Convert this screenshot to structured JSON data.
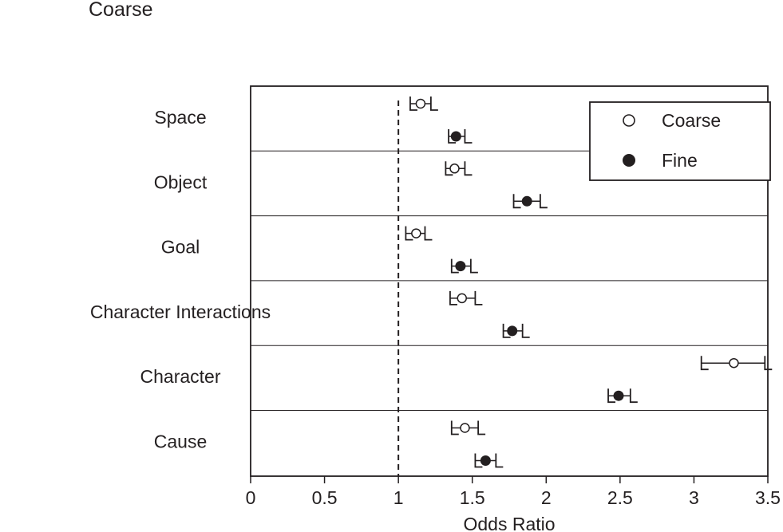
{
  "chart_data": {
    "type": "scatter",
    "title": "Coarse",
    "xlabel": "Odds Ratio",
    "ylabel": "",
    "xlim": [
      0,
      3.5
    ],
    "xticks": [
      "0",
      "0.5",
      "1",
      "1.5",
      "2",
      "2.5",
      "3",
      "3.5"
    ],
    "reference_line": 1,
    "grid": false,
    "legend_position": "top-right",
    "categories": [
      "Space",
      "Object",
      "Goal",
      "Character Interactions",
      "Character",
      "Cause"
    ],
    "series": [
      {
        "name": "Coarse",
        "marker": "open-circle",
        "values": [
          1.15,
          1.38,
          1.12,
          1.43,
          3.27,
          1.45
        ],
        "ci_low": [
          1.08,
          1.32,
          1.05,
          1.35,
          3.05,
          1.36
        ],
        "ci_high": [
          1.22,
          1.45,
          1.18,
          1.52,
          3.48,
          1.54
        ]
      },
      {
        "name": "Fine",
        "marker": "filled-circle",
        "values": [
          1.39,
          1.87,
          1.42,
          1.77,
          2.49,
          1.59
        ],
        "ci_low": [
          1.34,
          1.78,
          1.36,
          1.71,
          2.42,
          1.52
        ],
        "ci_high": [
          1.45,
          1.96,
          1.49,
          1.84,
          2.57,
          1.66
        ]
      }
    ]
  },
  "colors": {
    "ink": "#231f20",
    "background": "#ffffff"
  }
}
